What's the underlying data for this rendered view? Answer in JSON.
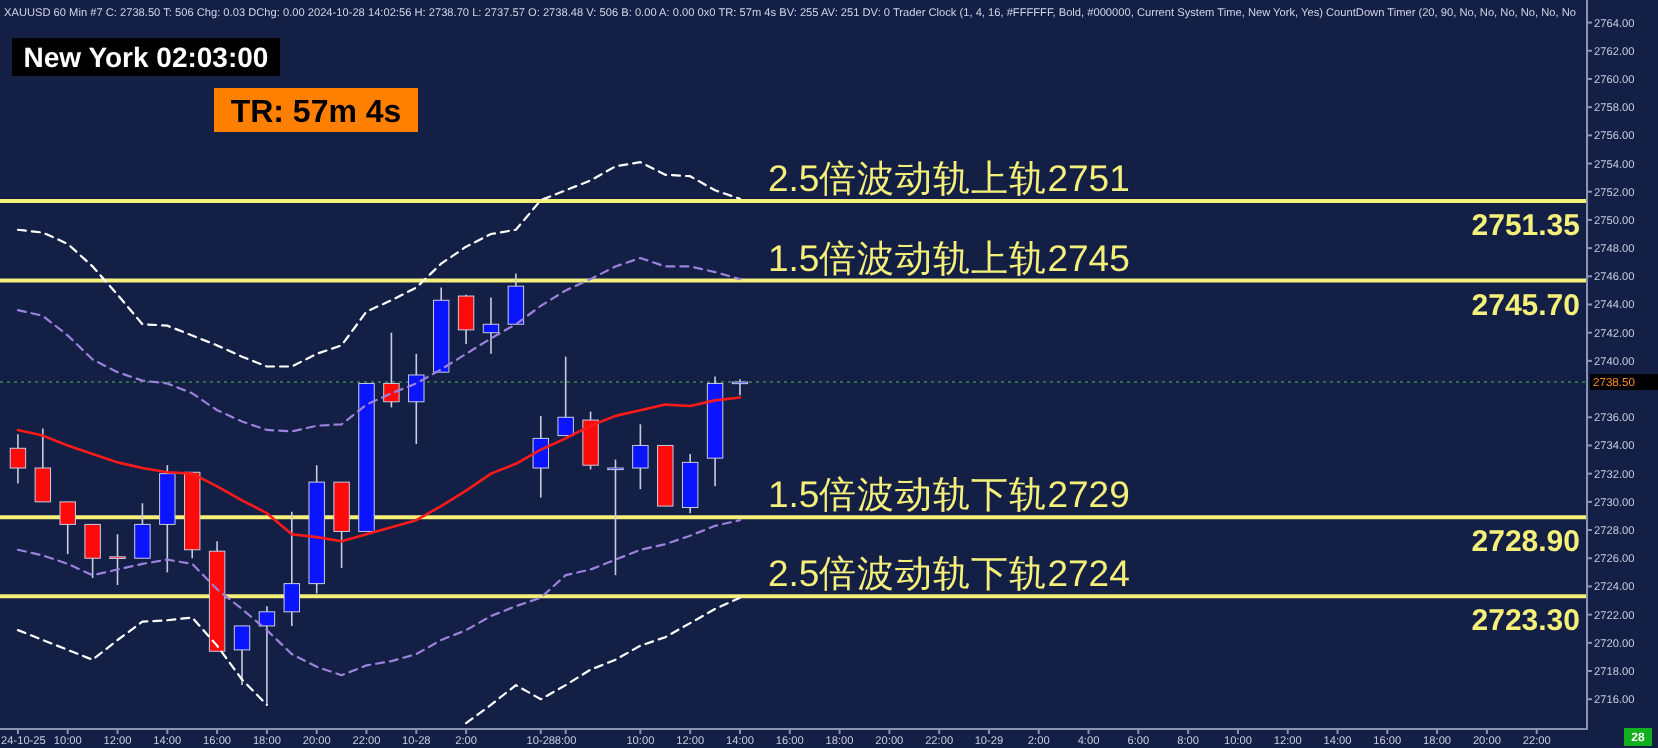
{
  "chart_data": {
    "type": "candlestick",
    "title": "XAUUSD  60 Min   #7 C: 2738.50 T: 506 Chg: 0.03 DChg: 0.00 2024-10-28 14:02:56 H: 2738.70 L: 2737.57 O: 2738.48 V: 506 B: 0.00 A: 0.00 0x0 TR: 57m 4s BV: 255 AV: 251 DV: 0 Trader Clock  (1, 4, 16, #FFFFFF, Bold, #000000, Current System Time, New York, Yes)  CountDown Timer  (20, 90, No, No, No, No, No, No",
    "categories": [
      "24-10-25",
      null,
      "10:00",
      null,
      "12:00",
      null,
      "14:00",
      null,
      "16:00",
      null,
      "18:00",
      null,
      "20:00",
      null,
      "22:00",
      null,
      "10-28",
      null,
      "2:00",
      null,
      null,
      "10-28",
      "8:00",
      null,
      null,
      "10:00",
      null,
      "12:00",
      null,
      "14:00",
      null,
      "16:00",
      null,
      "18:00",
      null,
      "20:00",
      null,
      "22:00",
      null,
      "10-29",
      null,
      "2:00",
      null,
      "4:00",
      null,
      "6:00",
      null,
      "8:00",
      null,
      "10:00",
      null,
      "12:00",
      null,
      "14:00",
      null,
      "16:00",
      null,
      "18:00",
      null,
      "20:00",
      null,
      "22:00"
    ],
    "ohlc": [
      [
        2733.8,
        2734.8,
        2731.3,
        2732.4
      ],
      [
        2732.4,
        2735.2,
        2730.0,
        2730.0
      ],
      [
        2730.0,
        2730.0,
        2726.3,
        2728.4
      ],
      [
        2728.4,
        2728.4,
        2724.6,
        2726.0
      ],
      [
        2726.1,
        2727.7,
        2724.1,
        2726.0
      ],
      [
        2726.0,
        2729.9,
        2726.0,
        2728.4
      ],
      [
        2728.4,
        2732.6,
        2725.0,
        2732.0
      ],
      [
        2732.1,
        2732.1,
        2726.0,
        2726.6
      ],
      [
        2726.5,
        2727.2,
        2719.4,
        2719.4
      ],
      [
        2719.5,
        2721.2,
        2717.0,
        2721.2
      ],
      [
        2721.2,
        2722.6,
        2715.6,
        2722.2
      ],
      [
        2722.2,
        2729.3,
        2721.2,
        2724.2
      ],
      [
        2724.2,
        2732.6,
        2723.5,
        2731.4
      ],
      [
        2731.4,
        2731.4,
        2725.3,
        2727.9
      ],
      [
        2727.9,
        2738.4,
        2727.9,
        2738.4
      ],
      [
        2738.4,
        2742.0,
        2736.7,
        2737.1
      ],
      [
        2737.1,
        2740.5,
        2734.1,
        2739.0
      ],
      [
        2739.2,
        2745.2,
        2739.2,
        2744.3
      ],
      [
        2744.6,
        2744.7,
        2741.2,
        2742.2
      ],
      [
        2742.0,
        2744.5,
        2740.5,
        2742.6
      ],
      [
        2742.6,
        2746.2,
        2742.6,
        2745.3
      ],
      [
        2732.4,
        2736.1,
        2730.3,
        2734.5
      ],
      [
        2734.7,
        2740.3,
        2734.7,
        2736.0
      ],
      [
        2735.8,
        2736.4,
        2732.3,
        2732.6
      ],
      [
        2732.4,
        2733.0,
        2724.8,
        2732.4
      ],
      [
        2732.4,
        2735.5,
        2730.9,
        2734.0
      ],
      [
        2734.0,
        2734.0,
        2729.7,
        2729.7
      ],
      [
        2729.6,
        2733.4,
        2729.2,
        2732.8
      ],
      [
        2733.1,
        2738.9,
        2731.1,
        2738.4
      ],
      [
        2738.48,
        2738.7,
        2737.57,
        2738.5
      ],
      null,
      null,
      null,
      null,
      null,
      null,
      null,
      null,
      null,
      null,
      null,
      null,
      null,
      null,
      null,
      null,
      null,
      null,
      null,
      null,
      null,
      null,
      null,
      null,
      null,
      null,
      null,
      null,
      null,
      null,
      null,
      null
    ],
    "series": [
      {
        "type": "line",
        "color": "#ff1a1a",
        "line_style": "solid",
        "values": [
          2735.1,
          2734.7,
          2734.0,
          2733.4,
          2732.8,
          2732.4,
          2732.1,
          2732.0,
          2731.1,
          2730.1,
          2729.2,
          2727.7,
          2727.5,
          2727.2,
          2727.7,
          2728.2,
          2728.7,
          2729.7,
          2730.8,
          2732.0,
          2732.7,
          2733.7,
          2734.5,
          2735.4,
          2736.1,
          2736.5,
          2736.9,
          2736.8,
          2737.2,
          2737.4,
          null,
          null,
          null,
          null,
          null,
          null,
          null,
          null,
          null,
          null,
          null,
          null,
          null,
          null,
          null,
          null,
          null,
          null,
          null,
          null,
          null,
          null,
          null,
          null,
          null,
          null,
          null,
          null,
          null,
          null,
          null,
          null
        ]
      },
      {
        "type": "line",
        "color": "#9b82dc",
        "line_style": "dashed",
        "values": [
          2743.6,
          2743.2,
          2741.8,
          2740.1,
          2739.2,
          2738.6,
          2738.4,
          2737.7,
          2736.5,
          2735.7,
          2735.1,
          2735.0,
          2735.4,
          2735.5,
          2736.9,
          2737.7,
          2738.4,
          2739.4,
          2740.5,
          2741.6,
          2742.6,
          2743.9,
          2745.0,
          2745.8,
          2746.7,
          2747.3,
          2746.7,
          2746.7,
          2746.3,
          2745.8,
          null,
          null,
          null,
          null,
          null,
          null,
          null,
          null,
          null,
          null,
          null,
          null,
          null,
          null,
          null,
          null,
          null,
          null,
          null,
          null,
          null,
          null,
          null,
          null,
          null,
          null,
          null,
          null,
          null,
          null,
          null,
          null
        ]
      },
      {
        "type": "line",
        "color": "#ffffff",
        "line_style": "dashed",
        "values": [
          2749.3,
          2749.1,
          2748.3,
          2746.7,
          2744.7,
          2742.6,
          2742.5,
          2741.8,
          2741.1,
          2740.3,
          2739.6,
          2739.6,
          2740.5,
          2741.1,
          2743.5,
          2744.3,
          2745.2,
          2746.9,
          2748.1,
          2749.0,
          2749.3,
          2751.4,
          2752.1,
          2752.8,
          2753.8,
          2754.1,
          2753.2,
          2753.1,
          2752.1,
          2751.5,
          null,
          null,
          null,
          null,
          null,
          null,
          null,
          null,
          null,
          null,
          null,
          null,
          null,
          null,
          null,
          null,
          null,
          null,
          null,
          null,
          null,
          null,
          null,
          null,
          null,
          null,
          null,
          null,
          null,
          null,
          null,
          null
        ]
      },
      {
        "type": "line",
        "color": "#9b82dc",
        "line_style": "dashed",
        "values": [
          2726.6,
          2726.2,
          2725.6,
          2724.8,
          2725.2,
          2725.6,
          2725.9,
          2725.6,
          2723.8,
          2722.4,
          2720.9,
          2719.2,
          2718.3,
          2717.7,
          2718.4,
          2718.7,
          2719.2,
          2720.2,
          2720.9,
          2721.9,
          2722.6,
          2723.2,
          2724.8,
          2725.2,
          2725.9,
          2726.6,
          2727.0,
          2727.6,
          2728.3,
          2728.7,
          null,
          null,
          null,
          null,
          null,
          null,
          null,
          null,
          null,
          null,
          null,
          null,
          null,
          null,
          null,
          null,
          null,
          null,
          null,
          null,
          null,
          null,
          null,
          null,
          null,
          null,
          null,
          null,
          null,
          null,
          null,
          null
        ]
      },
      {
        "type": "line",
        "color": "#ffffff",
        "line_style": "dashed",
        "values": [
          2720.9,
          2720.2,
          2719.5,
          2718.8,
          2720.2,
          2721.5,
          2721.6,
          2721.8,
          2719.8,
          2717.4,
          2715.6,
          null,
          null,
          null,
          null,
          null,
          null,
          null,
          2714.3,
          2715.6,
          2717.0,
          2716.0,
          2717.0,
          2718.1,
          2718.8,
          2719.8,
          2720.4,
          2721.4,
          2722.4,
          2723.2,
          null,
          null,
          null,
          null,
          null,
          null,
          null,
          null,
          null,
          null,
          null,
          null,
          null,
          null,
          null,
          null,
          null,
          null,
          null,
          null,
          null,
          null,
          null,
          null,
          null,
          null,
          null,
          null,
          null,
          null,
          null,
          null
        ]
      }
    ],
    "ylim": [
      2714.1,
      2765.6
    ],
    "yticks": [
      {
        "value": 2716,
        "label": "2716.00"
      },
      {
        "value": 2718,
        "label": "2718.00"
      },
      {
        "value": 2720,
        "label": "2720.00"
      },
      {
        "value": 2722,
        "label": "2722.00"
      },
      {
        "value": 2724,
        "label": "2724.00"
      },
      {
        "value": 2726,
        "label": "2726.00"
      },
      {
        "value": 2728,
        "label": "2728.00"
      },
      {
        "value": 2730,
        "label": "2730.00"
      },
      {
        "value": 2732,
        "label": "2732.00"
      },
      {
        "value": 2734,
        "label": "2734.00"
      },
      {
        "value": 2736,
        "label": "2736.00"
      },
      {
        "value": 2740,
        "label": "2740.00"
      },
      {
        "value": 2742,
        "label": "2742.00"
      },
      {
        "value": 2744,
        "label": "2744.00"
      },
      {
        "value": 2746,
        "label": "2746.00"
      },
      {
        "value": 2748,
        "label": "2748.00"
      },
      {
        "value": 2750,
        "label": "2750.00"
      },
      {
        "value": 2752,
        "label": "2752.00"
      },
      {
        "value": 2754,
        "label": "2754.00"
      },
      {
        "value": 2756,
        "label": "2756.00"
      },
      {
        "value": 2758,
        "label": "2758.00"
      },
      {
        "value": 2760,
        "label": "2760.00"
      },
      {
        "value": 2762,
        "label": "2762.00"
      },
      {
        "value": 2764,
        "label": "2764.00"
      }
    ],
    "ref_lines": [
      {
        "axis": "y",
        "value": 2751.35,
        "label": "2751.35",
        "color": "#f5f07a",
        "line_style": "solid"
      },
      {
        "axis": "y",
        "value": 2745.7,
        "label": "2745.70",
        "color": "#f5f07a",
        "line_style": "solid"
      },
      {
        "axis": "y",
        "value": 2728.9,
        "label": "2728.90",
        "color": "#f5f07a",
        "line_style": "solid"
      },
      {
        "axis": "y",
        "value": 2723.3,
        "label": "2723.30",
        "color": "#f5f07a",
        "line_style": "solid"
      },
      {
        "axis": "y",
        "value": 2738.5,
        "label": "2738.50",
        "color": "#3c8c50",
        "line_style": "dotted"
      }
    ],
    "annotations": [
      "New York 02:03:00",
      "TR: 57m 4s",
      "28",
      {
        "text": "2.5倍波动轨上轨2751",
        "y": 2751.35
      },
      {
        "text": "1.5倍波动轨上轨2745",
        "y": 2745.7
      },
      {
        "text": "1.5倍波动轨下轨2729",
        "y": 2728.9
      },
      {
        "text": "2.5倍波动轨下轨2724",
        "y": 2723.3
      }
    ],
    "grid": false
  }
}
